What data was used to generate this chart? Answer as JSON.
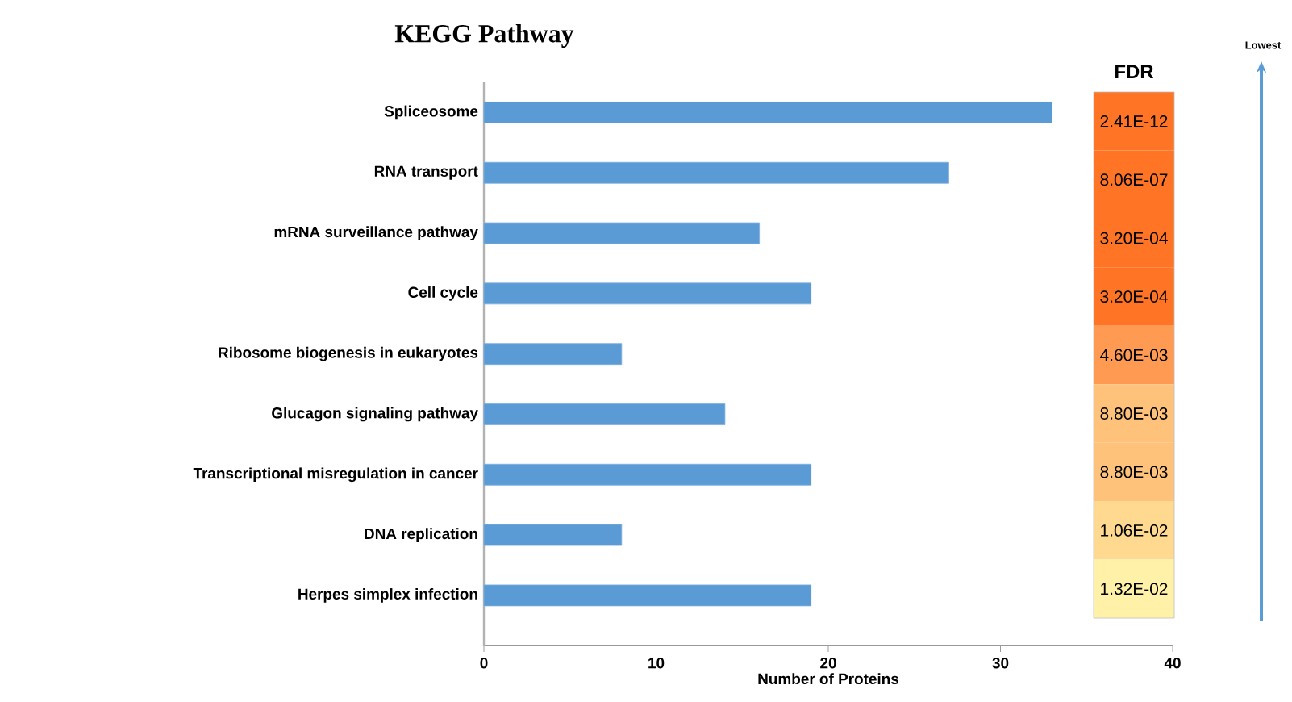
{
  "chart_data": [
    {
      "type": "bar",
      "orientation": "horizontal",
      "title": "KEGG Pathway",
      "xlabel": "Number of Proteins",
      "categories": [
        "Spliceosome",
        "RNA transport",
        "mRNA surveillance pathway",
        "Cell cycle",
        "Ribosome biogenesis in eukaryotes",
        "Glucagon signaling pathway",
        "Transcriptional misregulation in cancer",
        "DNA replication",
        "Herpes simplex infection"
      ],
      "values": [
        33,
        27,
        16,
        19,
        8,
        14,
        19,
        8,
        19
      ],
      "color": "#5b9bd5",
      "xlim": [
        0,
        40
      ],
      "xticks": [
        0,
        10,
        20,
        30,
        40
      ]
    },
    {
      "type": "heatmap",
      "categories": [
        "FDR"
      ],
      "y_categories": [
        null,
        null,
        null,
        null,
        null,
        null,
        null,
        null,
        null
      ],
      "cells": [
        [
          2.41e-12
        ],
        [
          8.06e-07
        ],
        [
          0.00032
        ],
        [
          0.00032
        ],
        [
          0.0046
        ],
        [
          0.0088
        ],
        [
          0.0088
        ],
        [
          0.0106
        ],
        [
          0.0132
        ]
      ],
      "cell_labels": [
        [
          "2.41E-12"
        ],
        [
          "8.06E-07"
        ],
        [
          "3.20E-04"
        ],
        [
          "3.20E-04"
        ],
        [
          "4.60E-03"
        ],
        [
          "8.80E-03"
        ],
        [
          "8.80E-03"
        ],
        [
          "1.06E-02"
        ],
        [
          "1.32E-02"
        ]
      ],
      "annotations": [
        "Lowest"
      ]
    }
  ]
}
